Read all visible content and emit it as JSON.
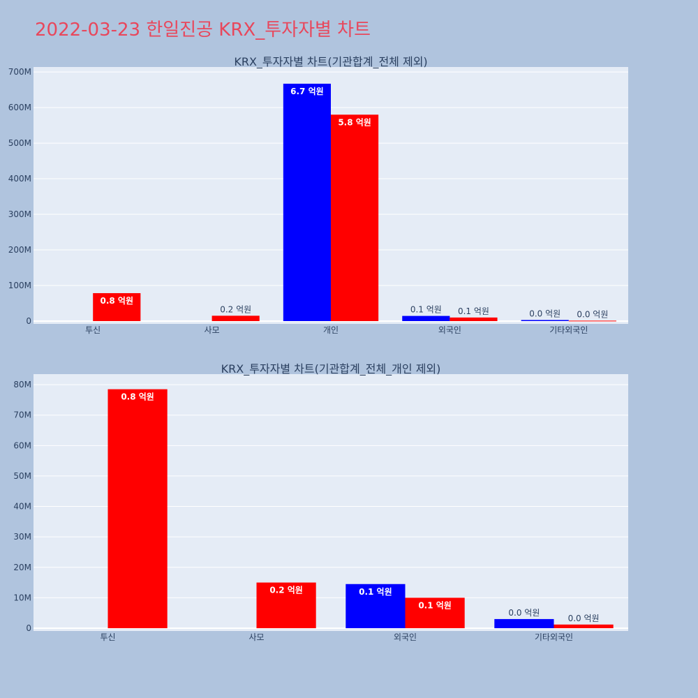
{
  "page": {
    "title": "2022-03-23 한일진공 KRX_투자자별 차트"
  },
  "colors": {
    "background": "#b0c4de",
    "plot_bg": "#e5ecf6",
    "title": "#e8475c",
    "series_a": "#0000ff",
    "series_b": "#ff0000",
    "text": "#2a3f5f"
  },
  "chart_data": [
    {
      "type": "bar",
      "title": "KRX_투자자별 차트(기관합계_전체 제외)",
      "categories": [
        "투신",
        "사모",
        "개인",
        "외국인",
        "기타외국인"
      ],
      "series": [
        {
          "color": "#0000ff",
          "values": [
            0,
            0,
            667000000,
            14500000,
            3000000
          ],
          "labels": [
            "",
            "",
            "6.7 억원",
            "0.1 억원",
            "0.0 억원"
          ]
        },
        {
          "color": "#ff0000",
          "values": [
            78500000,
            15000000,
            580000000,
            10000000,
            1200000
          ],
          "labels": [
            "0.8 억원",
            "0.2 억원",
            "5.8 억원",
            "0.1 억원",
            "0.0 억원"
          ]
        }
      ],
      "ylim": [
        0,
        710000000
      ],
      "yticks": [
        0,
        100000000,
        200000000,
        300000000,
        400000000,
        500000000,
        600000000,
        700000000
      ],
      "ytick_labels": [
        "0",
        "100M",
        "200M",
        "300M",
        "400M",
        "500M",
        "600M",
        "700M"
      ],
      "grid": true,
      "xlabel": "",
      "ylabel": ""
    },
    {
      "type": "bar",
      "title": "KRX_투자자별 차트(기관합계_전체_개인 제외)",
      "categories": [
        "투신",
        "사모",
        "외국인",
        "기타외국인"
      ],
      "series": [
        {
          "color": "#0000ff",
          "values": [
            0,
            0,
            14500000,
            3000000
          ],
          "labels": [
            "",
            "",
            "0.1 억원",
            "0.0 억원"
          ]
        },
        {
          "color": "#ff0000",
          "values": [
            78500000,
            15000000,
            10000000,
            1200000
          ],
          "labels": [
            "0.8 억원",
            "0.2 억원",
            "0.1 억원",
            "0.0 억원"
          ]
        }
      ],
      "ylim": [
        0,
        83000000
      ],
      "yticks": [
        0,
        10000000,
        20000000,
        30000000,
        40000000,
        50000000,
        60000000,
        70000000,
        80000000
      ],
      "ytick_labels": [
        "0",
        "10M",
        "20M",
        "30M",
        "40M",
        "50M",
        "60M",
        "70M",
        "80M"
      ],
      "grid": true,
      "xlabel": "",
      "ylabel": ""
    }
  ]
}
